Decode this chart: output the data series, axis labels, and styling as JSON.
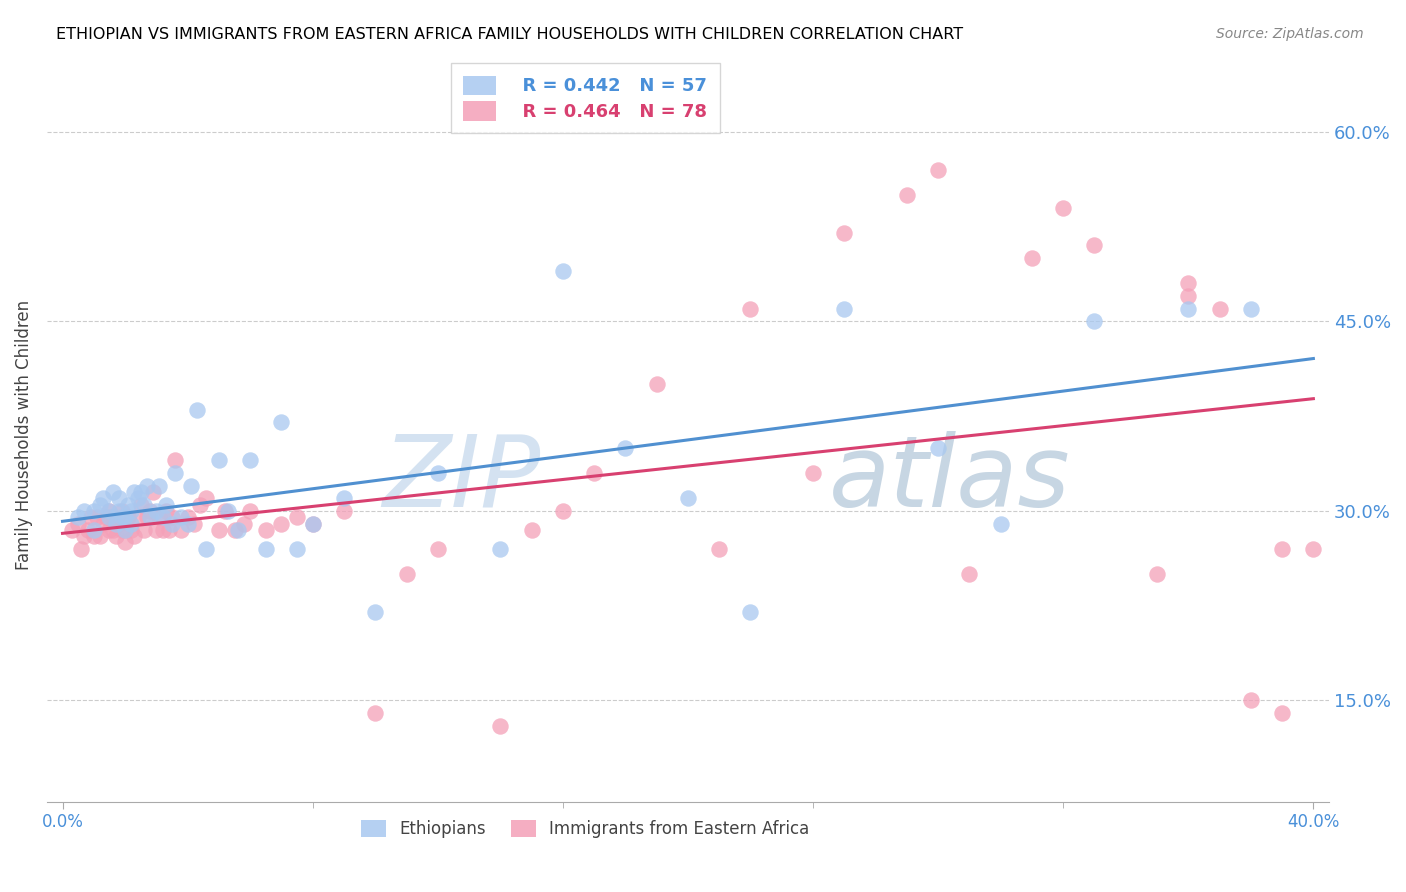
{
  "title": "ETHIOPIAN VS IMMIGRANTS FROM EASTERN AFRICA FAMILY HOUSEHOLDS WITH CHILDREN CORRELATION CHART",
  "source": "Source: ZipAtlas.com",
  "ylabel": "Family Households with Children",
  "xlim": [
    0.0,
    0.4
  ],
  "ylim": [
    0.07,
    0.65
  ],
  "yticks": [
    0.15,
    0.3,
    0.45,
    0.6
  ],
  "ytick_labels": [
    "15.0%",
    "30.0%",
    "45.0%",
    "60.0%"
  ],
  "series1_name": "Ethiopians",
  "series1_color": "#a8c8f0",
  "series1_R": 0.442,
  "series1_N": 57,
  "series2_name": "Immigrants from Eastern Africa",
  "series2_color": "#f4a0b8",
  "series2_R": 0.464,
  "series2_N": 78,
  "trend1_color": "#5090d0",
  "trend2_color": "#d84070",
  "watermark_zip": "ZIP",
  "watermark_atlas": "atlas",
  "background_color": "#ffffff",
  "grid_color": "#cccccc",
  "axis_label_color": "#4a90d9",
  "title_color": "#000000",
  "series1_x": [
    0.005,
    0.007,
    0.01,
    0.01,
    0.012,
    0.013,
    0.015,
    0.015,
    0.016,
    0.017,
    0.018,
    0.018,
    0.019,
    0.02,
    0.02,
    0.021,
    0.022,
    0.022,
    0.023,
    0.024,
    0.025,
    0.026,
    0.027,
    0.028,
    0.03,
    0.031,
    0.032,
    0.033,
    0.035,
    0.036,
    0.038,
    0.04,
    0.041,
    0.043,
    0.046,
    0.05,
    0.053,
    0.056,
    0.06,
    0.065,
    0.07,
    0.075,
    0.08,
    0.09,
    0.1,
    0.12,
    0.14,
    0.16,
    0.18,
    0.2,
    0.22,
    0.25,
    0.28,
    0.3,
    0.33,
    0.36,
    0.38
  ],
  "series1_y": [
    0.295,
    0.3,
    0.285,
    0.3,
    0.305,
    0.31,
    0.295,
    0.3,
    0.315,
    0.29,
    0.3,
    0.31,
    0.295,
    0.285,
    0.295,
    0.305,
    0.29,
    0.3,
    0.315,
    0.31,
    0.315,
    0.305,
    0.32,
    0.295,
    0.3,
    0.32,
    0.295,
    0.305,
    0.29,
    0.33,
    0.295,
    0.29,
    0.32,
    0.38,
    0.27,
    0.34,
    0.3,
    0.285,
    0.34,
    0.27,
    0.37,
    0.27,
    0.29,
    0.31,
    0.22,
    0.33,
    0.27,
    0.49,
    0.35,
    0.31,
    0.22,
    0.46,
    0.35,
    0.29,
    0.45,
    0.46,
    0.46
  ],
  "series2_x": [
    0.003,
    0.005,
    0.006,
    0.007,
    0.008,
    0.009,
    0.01,
    0.011,
    0.012,
    0.013,
    0.014,
    0.015,
    0.015,
    0.016,
    0.016,
    0.017,
    0.018,
    0.019,
    0.019,
    0.02,
    0.02,
    0.021,
    0.022,
    0.023,
    0.024,
    0.025,
    0.026,
    0.027,
    0.028,
    0.029,
    0.03,
    0.031,
    0.032,
    0.033,
    0.034,
    0.035,
    0.036,
    0.038,
    0.04,
    0.042,
    0.044,
    0.046,
    0.05,
    0.052,
    0.055,
    0.058,
    0.06,
    0.065,
    0.07,
    0.075,
    0.08,
    0.09,
    0.1,
    0.11,
    0.12,
    0.14,
    0.15,
    0.16,
    0.17,
    0.19,
    0.21,
    0.22,
    0.24,
    0.25,
    0.27,
    0.28,
    0.29,
    0.31,
    0.32,
    0.33,
    0.35,
    0.36,
    0.36,
    0.37,
    0.38,
    0.39,
    0.39,
    0.4
  ],
  "series2_y": [
    0.285,
    0.29,
    0.27,
    0.28,
    0.285,
    0.295,
    0.28,
    0.295,
    0.28,
    0.29,
    0.295,
    0.285,
    0.3,
    0.285,
    0.295,
    0.28,
    0.29,
    0.285,
    0.3,
    0.275,
    0.285,
    0.295,
    0.285,
    0.28,
    0.295,
    0.305,
    0.285,
    0.295,
    0.3,
    0.315,
    0.285,
    0.295,
    0.285,
    0.3,
    0.285,
    0.295,
    0.34,
    0.285,
    0.295,
    0.29,
    0.305,
    0.31,
    0.285,
    0.3,
    0.285,
    0.29,
    0.3,
    0.285,
    0.29,
    0.295,
    0.29,
    0.3,
    0.14,
    0.25,
    0.27,
    0.13,
    0.285,
    0.3,
    0.33,
    0.4,
    0.27,
    0.46,
    0.33,
    0.52,
    0.55,
    0.57,
    0.25,
    0.5,
    0.54,
    0.51,
    0.25,
    0.47,
    0.48,
    0.46,
    0.15,
    0.14,
    0.27,
    0.27
  ]
}
